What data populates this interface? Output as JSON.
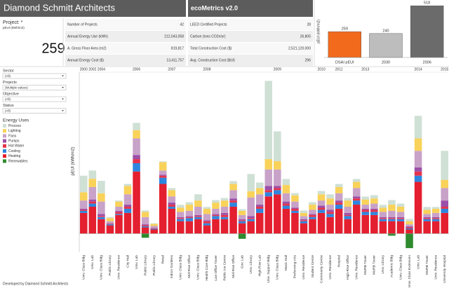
{
  "header": {
    "title": "Diamond Schmitt Architects",
    "app": "ecoMetrics v2.0"
  },
  "project": {
    "label": "Project: *",
    "metric": "pEUI (kWh/m2)",
    "value": 259
  },
  "metrics": [
    {
      "label": "Number of Projects",
      "value": "42"
    },
    {
      "label": "Annual Energy Use (kWh)",
      "value": "212,043,058"
    },
    {
      "label": "A. Gross Floor Area (m2)",
      "value": "819,817"
    },
    {
      "label": "Annual Energy Cost ($)",
      "value": "13,411,757"
    },
    {
      "label": "LEED Certified Projects",
      "value": "28"
    },
    {
      "label": "Carbon (tons CO2e/yr)",
      "value": "26,805"
    },
    {
      "label": "Total Construction Cost ($)",
      "value": "2,521,120,000"
    },
    {
      "label": "Avg. Construction Cost ($/sf)",
      "value": "296"
    }
  ],
  "filters": [
    {
      "label": "Sector",
      "value": "(All)"
    },
    {
      "label": "Projects",
      "value": "(Multiple values)"
    },
    {
      "label": "Objective",
      "value": "(All)"
    },
    {
      "label": "Status",
      "value": "(All)"
    }
  ],
  "footer": "Developed by Diamond Schmitt Architects",
  "chart_data": [
    {
      "type": "bar",
      "stacked": true,
      "ylabel": "pEUI (kWh/m2)",
      "legend_title": "Energy Uses",
      "ylim": [
        -90,
        780
      ],
      "categories": [
        "Univ. Class Bldg",
        "Univ. Lab",
        "Univ. Class Bldg",
        "Public Library",
        "Univ. Residence",
        "City Hall",
        "Univ. Lab",
        "Public Library",
        "Public Library",
        "Retail",
        "Indoor Gardens",
        "Univ. Class Bldg",
        "Mid-Rise Office",
        "Univ. Class Bldg",
        "Health Care Bldg",
        "Law Office Tower",
        "Public Ice Centre",
        "Mid-Rise Office",
        "Gov. Lab",
        "Univ. Library",
        "High-Rise Lab",
        "Univ. Support Bldg",
        "Univ. Class Bldg",
        "Music Hall",
        "Performing Arts",
        "Univ. Residence",
        "Student Centre",
        "Community Centre",
        "Univ. Residence",
        "Hospital",
        "High-Rise Office",
        "Univ. Residence",
        "MURB Tower",
        "MURB Tower",
        "Univ. Library",
        "Academic Bldg",
        "Univ. Class Bldg",
        "Univ. Class Extension",
        "Univ. Lab",
        "MURB Tower",
        "Univ. Residence",
        "University Hospital"
      ],
      "years": [
        "2000",
        "2002",
        "2004",
        null,
        null,
        null,
        "2006",
        null,
        null,
        null,
        "2007",
        null,
        null,
        null,
        "2008",
        null,
        null,
        null,
        null,
        null,
        null,
        null,
        "2009",
        null,
        null,
        null,
        null,
        "2010",
        null,
        "2011",
        null,
        null,
        "2013",
        null,
        null,
        null,
        null,
        null,
        "2014",
        null,
        null,
        "2015"
      ],
      "series": [
        {
          "name": "Process",
          "color": "#cfe0d5",
          "values": [
            80,
            40,
            60,
            5,
            5,
            10,
            35,
            7,
            3,
            4,
            10,
            14,
            12,
            30,
            9,
            12,
            12,
            14,
            8,
            83,
            27,
            378,
            144,
            29,
            11,
            12,
            12,
            16,
            20,
            15,
            12,
            14,
            14,
            16,
            14,
            22,
            15,
            11,
            109,
            14,
            9,
            140
          ]
        },
        {
          "name": "Lighting",
          "color": "#f9d25a",
          "values": [
            40,
            40,
            40,
            15,
            25,
            40,
            40,
            25,
            10,
            40,
            30,
            20,
            30,
            30,
            25,
            30,
            30,
            30,
            20,
            30,
            30,
            50,
            40,
            40,
            30,
            15,
            25,
            30,
            30,
            30,
            30,
            30,
            25,
            25,
            20,
            30,
            25,
            15,
            60,
            20,
            20,
            40
          ]
        },
        {
          "name": "Fans",
          "color": "#c8a2c8",
          "values": [
            40,
            60,
            60,
            10,
            20,
            50,
            80,
            35,
            10,
            20,
            30,
            25,
            25,
            40,
            30,
            25,
            30,
            40,
            20,
            90,
            50,
            80,
            80,
            40,
            30,
            15,
            20,
            25,
            25,
            35,
            30,
            40,
            20,
            25,
            25,
            30,
            25,
            10,
            80,
            15,
            20,
            60
          ]
        },
        {
          "name": "Pumps",
          "color": "#9b4fa8",
          "values": [
            5,
            10,
            10,
            2,
            5,
            10,
            20,
            5,
            2,
            5,
            10,
            5,
            5,
            5,
            5,
            5,
            10,
            10,
            5,
            10,
            10,
            20,
            10,
            10,
            5,
            5,
            5,
            10,
            10,
            10,
            10,
            10,
            5,
            5,
            5,
            5,
            5,
            5,
            20,
            5,
            5,
            30
          ]
        },
        {
          "name": "Hot Water",
          "color": "#e5334b",
          "values": [
            5,
            10,
            5,
            3,
            10,
            10,
            20,
            5,
            2,
            10,
            10,
            5,
            5,
            5,
            10,
            5,
            10,
            10,
            5,
            5,
            10,
            10,
            10,
            10,
            10,
            5,
            10,
            10,
            10,
            10,
            5,
            10,
            10,
            10,
            5,
            5,
            5,
            5,
            20,
            5,
            5,
            10
          ]
        },
        {
          "name": "Cooling",
          "color": "#2e86de",
          "values": [
            10,
            15,
            10,
            5,
            5,
            20,
            40,
            5,
            3,
            30,
            10,
            10,
            15,
            10,
            10,
            15,
            10,
            20,
            10,
            10,
            20,
            20,
            20,
            15,
            10,
            10,
            10,
            15,
            15,
            20,
            15,
            20,
            15,
            15,
            10,
            10,
            10,
            5,
            30,
            10,
            10,
            20
          ]
        },
        {
          "name": "Heating",
          "color": "#e41f2f",
          "values": [
            100,
            130,
            70,
            40,
            90,
            100,
            300,
            30,
            20,
            240,
            120,
            60,
            60,
            70,
            40,
            70,
            70,
            130,
            50,
            60,
            100,
            180,
            190,
            120,
            100,
            50,
            70,
            100,
            80,
            120,
            70,
            140,
            90,
            90,
            60,
            60,
            60,
            20,
            250,
            60,
            60,
            100
          ]
        },
        {
          "name": "Renewables",
          "color": "#2e8b2e",
          "values": [
            0,
            0,
            0,
            0,
            0,
            0,
            0,
            -20,
            0,
            0,
            0,
            0,
            0,
            0,
            0,
            0,
            0,
            0,
            -25,
            0,
            0,
            0,
            0,
            0,
            0,
            0,
            0,
            0,
            0,
            0,
            0,
            0,
            0,
            0,
            0,
            -10,
            0,
            -70,
            0,
            0,
            0,
            0
          ]
        }
      ]
    },
    {
      "type": "bar",
      "ylabel": "pEUI (kWh/m2)",
      "ylim": [
        0,
        520
      ],
      "categories": [
        "DSAI pEUI",
        "2030",
        "2006"
      ],
      "values": [
        259,
        240,
        518
      ],
      "colors": [
        "#f26b1d",
        "#bdbdbd",
        "#6b6b6b"
      ]
    }
  ]
}
